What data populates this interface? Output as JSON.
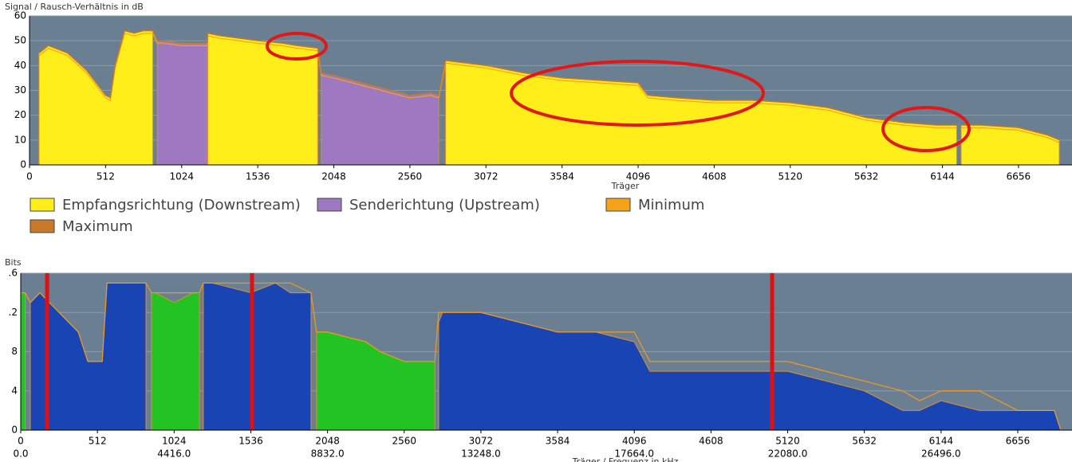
{
  "chart_data": [
    {
      "type": "area",
      "title": "Signal / Rausch-Verhältnis in dB",
      "x_label": "Träger",
      "xlim": [
        0,
        7016
      ],
      "ylim": [
        0,
        60
      ],
      "xticks": [
        0,
        512,
        1024,
        1536,
        2048,
        2560,
        3072,
        3584,
        4096,
        4608,
        5120,
        5632,
        6144,
        6656
      ],
      "yticks": [
        0,
        10,
        20,
        30,
        40,
        50,
        60
      ],
      "grid": true,
      "background": "#6b7f92",
      "x": [
        64,
        128,
        256,
        384,
        448,
        512,
        544,
        576,
        640,
        704,
        768,
        830,
        860,
        900,
        1024,
        1150,
        1197,
        1200,
        1280,
        1536,
        1700,
        1800,
        1940,
        1965,
        2048,
        2304,
        2560,
        2700,
        2754,
        2800,
        3072,
        3328,
        3584,
        3840,
        4096,
        4160,
        4350,
        4608,
        4864,
        5120,
        5376,
        5632,
        5888,
        6100,
        6240,
        6256,
        6270,
        6400,
        6656,
        6850,
        6930
      ],
      "series": [
        {
          "name": "Empfangsrichtung (Downstream)",
          "color": "#ffee1a",
          "kind": "area",
          "values": [
            45,
            48,
            45,
            38,
            33,
            28,
            27,
            40,
            54,
            53,
            54,
            54,
            null,
            null,
            null,
            null,
            null,
            53,
            52,
            50,
            49,
            48,
            47,
            null,
            null,
            null,
            null,
            null,
            null,
            42,
            40,
            37,
            35,
            34,
            33,
            28,
            27,
            26,
            26,
            25,
            23,
            19,
            17,
            16,
            16,
            null,
            16,
            16,
            15,
            12,
            10
          ]
        },
        {
          "name": "Senderichtung (Upstream)",
          "color": "#9e78c0",
          "kind": "area",
          "values": [
            null,
            null,
            null,
            null,
            null,
            null,
            null,
            null,
            null,
            null,
            null,
            null,
            50,
            50,
            49,
            49,
            49,
            null,
            null,
            null,
            null,
            null,
            null,
            37,
            36,
            32,
            28,
            29,
            28,
            null,
            null,
            null,
            null,
            null,
            null,
            null,
            null,
            null,
            null,
            null,
            null,
            null,
            null,
            null,
            null,
            null,
            null,
            null,
            null,
            null,
            null
          ]
        },
        {
          "name": "Minimum",
          "color": "#f7a21b",
          "kind": "line",
          "values": [
            44,
            47,
            44,
            37,
            32,
            27,
            26,
            39,
            53,
            52,
            53,
            53,
            49,
            49,
            48,
            48,
            48,
            52,
            51,
            49,
            48,
            47,
            46,
            36,
            35,
            31,
            27,
            28,
            27,
            41,
            39,
            36,
            34,
            33,
            32,
            27,
            26,
            25,
            25,
            24,
            22,
            18,
            16,
            15,
            15,
            null,
            15,
            15,
            14,
            11,
            9
          ]
        },
        {
          "name": "Maximum",
          "color": "#c87a2a",
          "kind": "line",
          "values": [
            45,
            48,
            45,
            38,
            33,
            28,
            27,
            40,
            54,
            53,
            54,
            54,
            50,
            50,
            49,
            49,
            49,
            53,
            52,
            50,
            49,
            48,
            47,
            37,
            36,
            32,
            28,
            29,
            28,
            42,
            40,
            37,
            35,
            34,
            33,
            28,
            27,
            26,
            26,
            25,
            23,
            19,
            17,
            16,
            16,
            null,
            16,
            16,
            15,
            12,
            10
          ]
        }
      ]
    },
    {
      "type": "area",
      "title": "Bits",
      "x_label": "Träger / Frequenz in kHz",
      "xlim": [
        0,
        7018
      ],
      "ylim": [
        0,
        16
      ],
      "xticks": [
        0,
        512,
        1024,
        1536,
        2048,
        2560,
        3072,
        3584,
        4096,
        4608,
        5120,
        5632,
        6144,
        6656
      ],
      "yticks": [
        0,
        4,
        8,
        {
          "value": 12,
          "label": ".2"
        },
        {
          "value": 16,
          "label": ".6"
        }
      ],
      "x2lim": [
        0,
        30265
      ],
      "x2ticks": [
        {
          "value": 0,
          "label": "0.0"
        },
        {
          "value": 4416,
          "label": "4416.0"
        },
        {
          "value": 8832,
          "label": "8832.0"
        },
        {
          "value": 13248,
          "label": "13248.0"
        },
        {
          "value": 17664,
          "label": "17664.0"
        },
        {
          "value": 22080,
          "label": "22080.0"
        },
        {
          "value": 26496,
          "label": "26496.0"
        }
      ],
      "grid": true,
      "background": "#6b7f92",
      "markers": {
        "color": "#e01010",
        "x": [
          176,
          1544,
          5016
        ]
      },
      "x": [
        0,
        30,
        64,
        128,
        256,
        384,
        448,
        512,
        544,
        576,
        640,
        768,
        836,
        873,
        900,
        1024,
        1150,
        1193,
        1219,
        1280,
        1536,
        1700,
        1800,
        1938,
        1975,
        2048,
        2304,
        2400,
        2560,
        2764,
        2790,
        2816,
        3072,
        3328,
        3584,
        3840,
        4096,
        4200,
        4352,
        4608,
        4864,
        5120,
        5376,
        5632,
        5888,
        6000,
        6144,
        6400,
        6656,
        6900,
        6943
      ],
      "series": [
        {
          "color": "#1844b4",
          "kind": "area",
          "values": [
            null,
            null,
            13,
            14,
            12,
            10,
            7,
            7,
            7,
            15,
            15,
            15,
            15,
            null,
            null,
            null,
            null,
            null,
            15,
            15,
            14,
            15,
            14,
            14,
            null,
            null,
            null,
            null,
            null,
            null,
            11,
            12,
            12,
            11,
            10,
            10,
            9,
            6,
            6,
            6,
            6,
            6,
            5,
            4,
            2,
            2,
            3,
            2,
            2,
            2,
            0
          ]
        },
        {
          "color": "#22c322",
          "kind": "area",
          "values": [
            14,
            14,
            null,
            null,
            null,
            null,
            null,
            null,
            null,
            null,
            null,
            null,
            null,
            14,
            14,
            13,
            14,
            14,
            null,
            null,
            null,
            null,
            null,
            null,
            10,
            10,
            9,
            8,
            7,
            7,
            null,
            null,
            null,
            null,
            null,
            null,
            null,
            null,
            null,
            null,
            null,
            null,
            null,
            null,
            null,
            null,
            null,
            null,
            null,
            null,
            null
          ]
        },
        {
          "color": "#f39a1e",
          "kind": "line",
          "values": [
            14,
            14,
            13,
            14,
            12,
            10,
            7,
            7,
            7,
            15,
            15,
            15,
            15,
            14,
            14,
            14,
            14,
            14,
            15,
            15,
            15,
            15,
            15,
            14,
            10,
            10,
            9,
            8,
            7,
            7,
            12,
            12,
            12,
            11,
            10,
            10,
            10,
            7,
            7,
            7,
            7,
            7,
            6,
            5,
            4,
            3,
            4,
            4,
            2,
            2,
            0
          ]
        }
      ]
    }
  ]
}
